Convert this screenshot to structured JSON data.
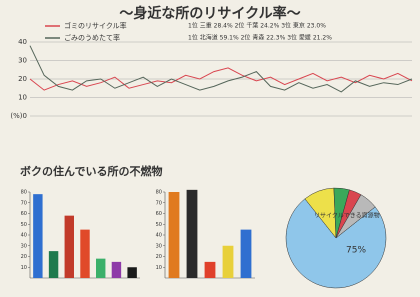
{
  "chart_data": [
    {
      "type": "line",
      "title": "〜身近な所のリサイクル率〜",
      "annotations": [
        "1位 三重 28.4%  2位 千葉 24.2%  3位 東京 23.0%",
        "1位 北海道 59.1%  2位 青森 22.3%  3位 愛媛 21.2%"
      ],
      "categories": [
        null,
        null,
        null,
        null,
        null,
        null,
        null,
        null,
        null,
        null,
        null,
        null,
        null,
        null,
        null,
        null,
        null,
        null,
        null,
        null,
        null,
        null,
        null,
        null,
        null,
        null,
        null,
        null
      ],
      "series": [
        {
          "name": "ゴミのリサイクル率",
          "color": "#d9454f",
          "values": [
            20,
            14,
            17,
            19,
            16,
            18,
            21,
            15,
            17,
            19,
            18,
            22,
            20,
            24,
            26,
            22,
            19,
            21,
            17,
            20,
            23,
            19,
            21,
            18,
            22,
            20,
            23,
            19
          ]
        },
        {
          "name": "ごみのうめたて率",
          "color": "#55665a",
          "values": [
            38,
            22,
            16,
            14,
            19,
            20,
            15,
            18,
            21,
            16,
            20,
            17,
            14,
            16,
            19,
            21,
            24,
            16,
            14,
            18,
            15,
            17,
            13,
            19,
            16,
            18,
            17,
            20
          ]
        }
      ],
      "ylim": [
        0,
        40
      ],
      "yticks": [
        {
          "value": 0,
          "label": "(%)0"
        },
        10,
        20,
        30,
        40
      ]
    },
    {
      "type": "bar",
      "title": "ボクの住んでいる所の不燃物",
      "categories": [
        null,
        null,
        null,
        null,
        null,
        null,
        null
      ],
      "values": [
        78,
        25,
        58,
        45,
        18,
        15,
        10
      ],
      "colors": [
        "#2f6fd0",
        "#1f7a4d",
        "#c23a2a",
        "#e04a2a",
        "#3bb06a",
        "#8e3aa8",
        "#1a1a1a"
      ],
      "ylim": [
        0,
        80
      ],
      "yticks": [
        10,
        20,
        30,
        40,
        50,
        60,
        70,
        80
      ]
    },
    {
      "type": "bar",
      "categories": [
        null,
        null,
        null,
        null,
        null
      ],
      "values": [
        80,
        82,
        15,
        30,
        45
      ],
      "colors": [
        "#e07a1f",
        "#2a2a2a",
        "#e0402a",
        "#e8d03a",
        "#2f6fd0"
      ],
      "ylim": [
        0,
        80
      ],
      "yticks": [
        10,
        20,
        30,
        40,
        50,
        60,
        70,
        80
      ]
    },
    {
      "type": "pie",
      "categories": [
        "リサイクルできる資源物",
        null,
        null,
        null,
        null
      ],
      "values": [
        75,
        10,
        5,
        4,
        6
      ],
      "value_labels": [
        "75%",
        null,
        null,
        null,
        null
      ],
      "colors": [
        "#8fc6ea",
        "#ede04a",
        "#3aa85a",
        "#d9454f",
        "#b9b9b9"
      ]
    }
  ]
}
